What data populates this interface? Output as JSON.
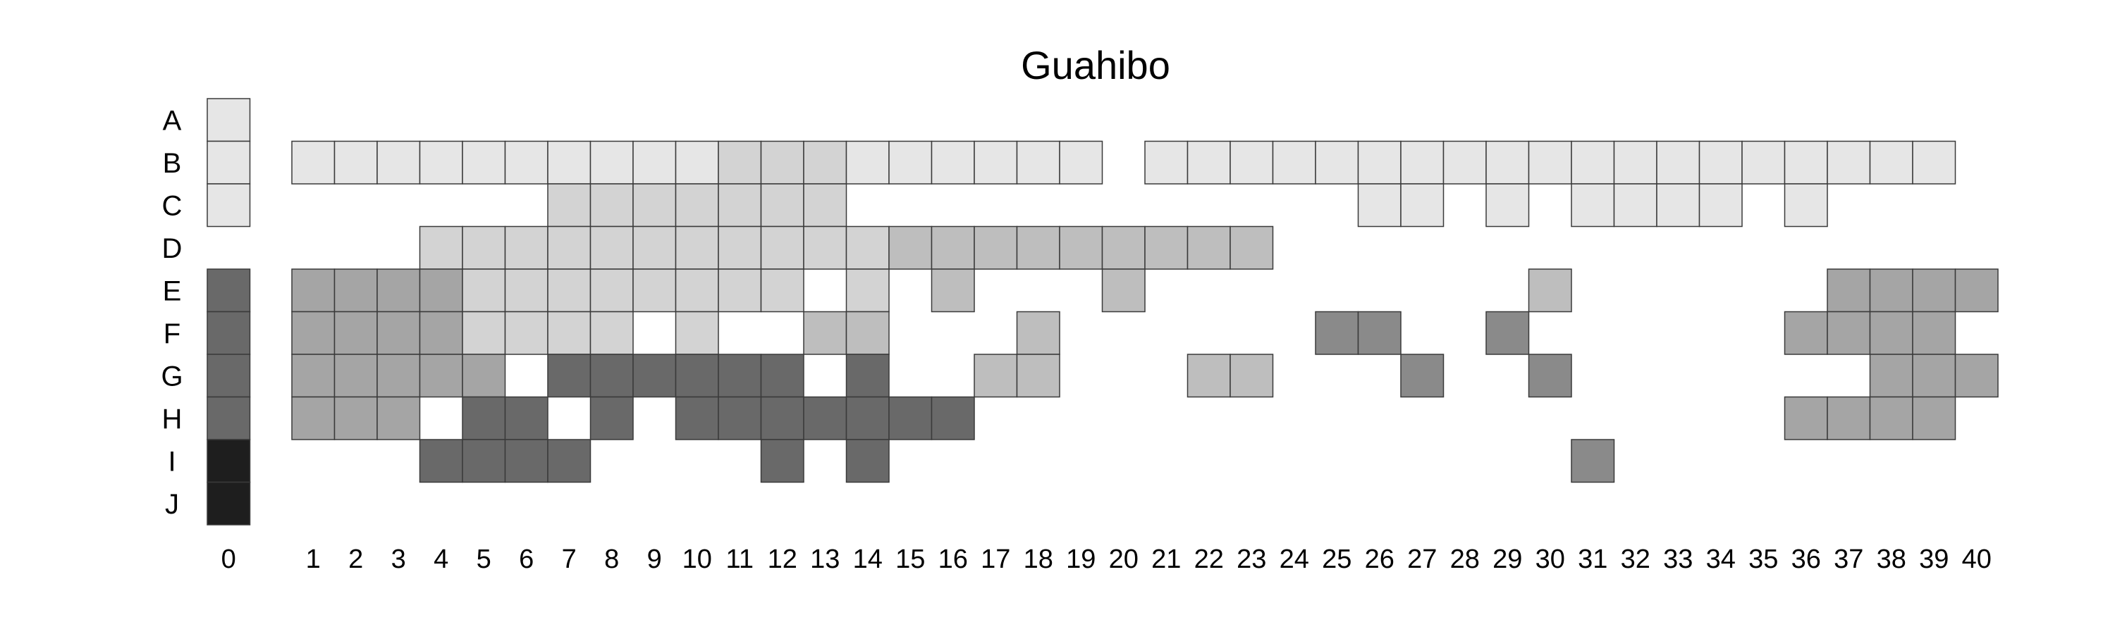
{
  "chart_data": {
    "type": "heatmap",
    "title": "Guahibo",
    "rows": [
      "A",
      "B",
      "C",
      "D",
      "E",
      "F",
      "G",
      "H",
      "I",
      "J"
    ],
    "columns": [
      "0",
      "1",
      "2",
      "3",
      "4",
      "5",
      "6",
      "7",
      "8",
      "9",
      "10",
      "11",
      "12",
      "13",
      "14",
      "15",
      "16",
      "17",
      "18",
      "19",
      "20",
      "21",
      "22",
      "23",
      "24",
      "25",
      "26",
      "27",
      "28",
      "29",
      "30",
      "31",
      "32",
      "33",
      "34",
      "35",
      "36",
      "37",
      "38",
      "39",
      "40"
    ],
    "colors": {
      "1": "#e6e6e6",
      "2": "#d3d3d3",
      "3": "#bebebe",
      "4": "#a5a5a5",
      "5": "#8a8a8a",
      "6": "#696969",
      "7": "#1e1e1e"
    },
    "value_grid": [
      "1                                        ",
      "11111111111222111111 1111111111111111111",
      "1      2222222            11 1 1111 1   ",
      "    22222222222333333333                 ",
      "6444422222222 2 3   3         3      4444",
      "644442222 2  33   3      55  5      4444",
      "644444 666666 6  33   33   5  5       444",
      "6444 66 6 6666666                   4444",
      "7   6666    6 6                5         ",
      "7                                        "
    ],
    "grid_encoding": "characters = shade level per column (0-40); space = empty"
  }
}
